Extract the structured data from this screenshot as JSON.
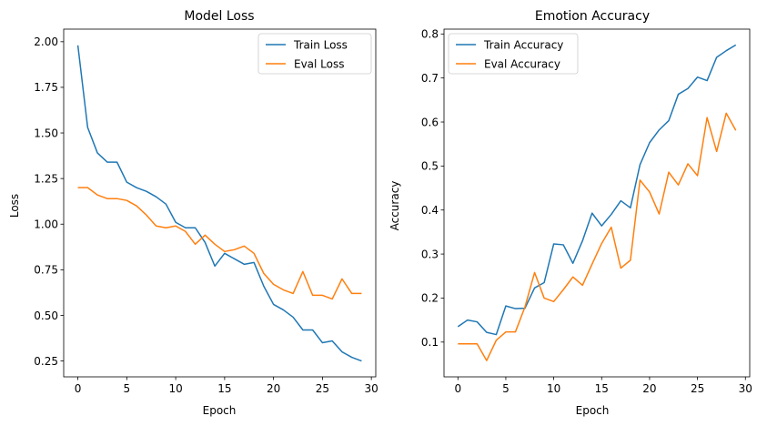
{
  "colors": {
    "train": "#1f77b4",
    "eval": "#ff7f0e"
  },
  "chart_data": [
    {
      "type": "line",
      "title": "Model Loss",
      "xlabel": "Epoch",
      "ylabel": "Loss",
      "xlim": [
        -1.45,
        30.45
      ],
      "ylim": [
        0.163,
        2.069
      ],
      "xticks": [
        0,
        5,
        10,
        15,
        20,
        25,
        30
      ],
      "yticks": [
        0.25,
        0.5,
        0.75,
        1.0,
        1.25,
        1.5,
        1.75,
        2.0
      ],
      "ytick_labels": [
        "0.25",
        "0.50",
        "0.75",
        "1.00",
        "1.25",
        "1.50",
        "1.75",
        "2.00"
      ],
      "legend_position": "top-right",
      "x": [
        0,
        1,
        2,
        3,
        4,
        5,
        6,
        7,
        8,
        9,
        10,
        11,
        12,
        13,
        14,
        15,
        16,
        17,
        18,
        19,
        20,
        21,
        22,
        23,
        24,
        25,
        26,
        27,
        28,
        29
      ],
      "series": [
        {
          "name": "Train Loss",
          "color": "#1f77b4",
          "values": [
            1.98,
            1.53,
            1.39,
            1.34,
            1.34,
            1.23,
            1.2,
            1.18,
            1.15,
            1.11,
            1.01,
            0.98,
            0.98,
            0.9,
            0.77,
            0.84,
            0.81,
            0.78,
            0.79,
            0.66,
            0.56,
            0.53,
            0.49,
            0.42,
            0.42,
            0.35,
            0.36,
            0.3,
            0.27,
            0.25
          ]
        },
        {
          "name": "Eval Loss",
          "color": "#ff7f0e",
          "values": [
            1.2,
            1.2,
            1.16,
            1.14,
            1.14,
            1.13,
            1.1,
            1.05,
            0.99,
            0.98,
            0.99,
            0.96,
            0.89,
            0.94,
            0.89,
            0.85,
            0.86,
            0.88,
            0.84,
            0.73,
            0.67,
            0.64,
            0.62,
            0.74,
            0.61,
            0.61,
            0.59,
            0.7,
            0.62,
            0.62
          ]
        }
      ]
    },
    {
      "type": "line",
      "title": "Emotion Accuracy",
      "xlabel": "Epoch",
      "ylabel": "Accuracy",
      "xlim": [
        -1.45,
        30.45
      ],
      "ylim": [
        0.021,
        0.811
      ],
      "xticks": [
        0,
        5,
        10,
        15,
        20,
        25,
        30
      ],
      "yticks": [
        0.1,
        0.2,
        0.3,
        0.4,
        0.5,
        0.6,
        0.7,
        0.8
      ],
      "ytick_labels": [
        "0.1",
        "0.2",
        "0.3",
        "0.4",
        "0.5",
        "0.6",
        "0.7",
        "0.8"
      ],
      "legend_position": "top-left",
      "x": [
        0,
        1,
        2,
        3,
        4,
        5,
        6,
        7,
        8,
        9,
        10,
        11,
        12,
        13,
        14,
        15,
        16,
        17,
        18,
        19,
        20,
        21,
        22,
        23,
        24,
        25,
        26,
        27,
        28,
        29
      ],
      "series": [
        {
          "name": "Train Accuracy",
          "color": "#1f77b4",
          "values": [
            0.135,
            0.15,
            0.146,
            0.122,
            0.117,
            0.182,
            0.176,
            0.177,
            0.223,
            0.235,
            0.323,
            0.321,
            0.279,
            0.33,
            0.393,
            0.364,
            0.39,
            0.421,
            0.405,
            0.503,
            0.553,
            0.582,
            0.603,
            0.663,
            0.676,
            0.702,
            0.694,
            0.747,
            0.762,
            0.775
          ]
        },
        {
          "name": "Eval Accuracy",
          "color": "#ff7f0e",
          "values": [
            0.096,
            0.096,
            0.096,
            0.058,
            0.104,
            0.123,
            0.123,
            0.18,
            0.258,
            0.2,
            0.192,
            0.219,
            0.248,
            0.229,
            0.277,
            0.324,
            0.361,
            0.268,
            0.286,
            0.468,
            0.441,
            0.391,
            0.486,
            0.457,
            0.505,
            0.478,
            0.61,
            0.533,
            0.62,
            0.581
          ]
        }
      ]
    }
  ]
}
